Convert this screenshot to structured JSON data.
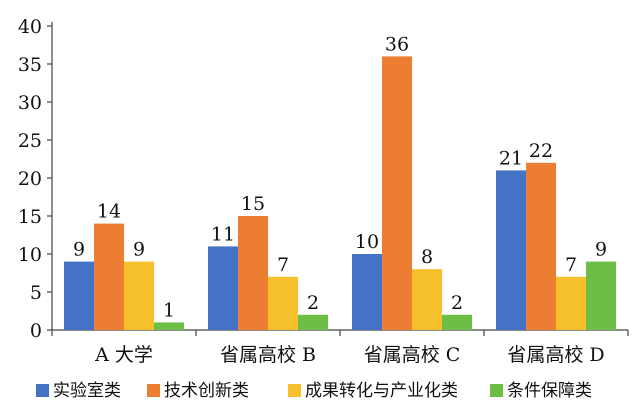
{
  "chart_data": {
    "type": "bar",
    "categories": [
      "A 大学",
      "省属高校 B",
      "省属高校 C",
      "省属高校 D"
    ],
    "series": [
      {
        "name": "实验室类",
        "color": "#4472C4",
        "values": [
          9,
          11,
          10,
          21
        ]
      },
      {
        "name": "技术创新类",
        "color": "#ED7D31",
        "values": [
          14,
          15,
          36,
          22
        ]
      },
      {
        "name": "成果转化与产业化类",
        "color": "#F5C02A",
        "values": [
          9,
          7,
          8,
          7
        ]
      },
      {
        "name": "条件保障类",
        "color": "#6CBE45",
        "values": [
          1,
          2,
          2,
          9
        ]
      }
    ],
    "ylim": [
      0,
      40
    ],
    "yticks": [
      0,
      5,
      10,
      15,
      20,
      25,
      30,
      35,
      40
    ],
    "grid": false,
    "legend_position": "bottom",
    "data_labels": true
  }
}
